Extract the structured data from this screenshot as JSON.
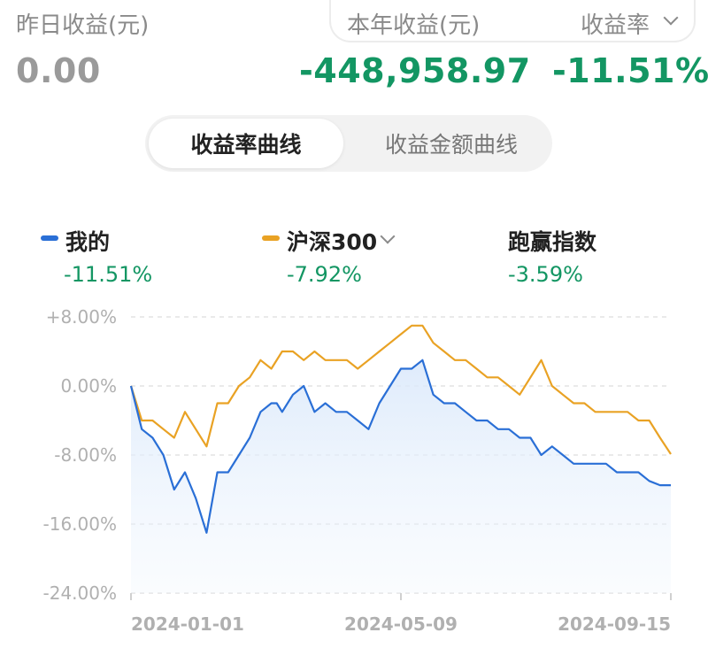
{
  "summary": {
    "yesterday_label": "昨日收益(元)",
    "yesterday_value": "0.00",
    "year_label": "本年收益(元)",
    "year_value": "-448,958.97",
    "rate_label": "收益率",
    "rate_value": "-11.51%"
  },
  "tabs": {
    "rate_curve": "收益率曲线",
    "amount_curve": "收益金额曲线"
  },
  "legend": {
    "mine": {
      "name": "我的",
      "value": "-11.51%",
      "color": "#2a6fd6"
    },
    "benchmark": {
      "name": "沪深300",
      "value": "-7.92%",
      "color": "#e9a224"
    },
    "outperform": {
      "name": "跑赢指数",
      "value": "-3.59%"
    }
  },
  "colors": {
    "positive_text": "#139663",
    "mine": "#2a6fd6",
    "benchmark": "#e9a224"
  },
  "chart_data": {
    "type": "line",
    "y_ticks": [
      "+8.00%",
      "0.00%",
      "-8.00%",
      "-16.00%",
      "-24.00%"
    ],
    "ylim": [
      -24,
      8
    ],
    "x_ticks": [
      "2024-01-01",
      "2024-05-09",
      "2024-09-15"
    ],
    "xlim": [
      0,
      100
    ],
    "grid": true,
    "series": [
      {
        "name": "我的",
        "x": [
          0,
          2,
          4,
          6,
          8,
          10,
          12,
          14,
          16,
          18,
          20,
          22,
          24,
          26,
          27,
          28,
          30,
          32,
          34,
          36,
          38,
          40,
          42,
          44,
          46,
          48,
          50,
          52,
          54,
          56,
          58,
          60,
          62,
          64,
          66,
          68,
          70,
          72,
          74,
          76,
          78,
          80,
          82,
          84,
          86,
          88,
          90,
          92,
          94,
          96,
          98,
          100
        ],
        "y": [
          0,
          -5,
          -6,
          -8,
          -12,
          -10,
          -13,
          -17,
          -10,
          -10,
          -8,
          -6,
          -3,
          -2,
          -2,
          -3,
          -1,
          0,
          -3,
          -2,
          -3,
          -3,
          -4,
          -5,
          -2,
          0,
          2,
          2,
          3,
          -1,
          -2,
          -2,
          -3,
          -4,
          -4,
          -5,
          -5,
          -6,
          -6,
          -8,
          -7,
          -8,
          -9,
          -9,
          -9,
          -9,
          -10,
          -10,
          -10,
          -11,
          -11.5,
          -11.5
        ]
      },
      {
        "name": "沪深300",
        "x": [
          0,
          2,
          4,
          6,
          8,
          10,
          12,
          14,
          16,
          18,
          20,
          22,
          24,
          26,
          28,
          30,
          32,
          34,
          36,
          38,
          40,
          42,
          44,
          46,
          48,
          50,
          52,
          54,
          56,
          58,
          60,
          62,
          64,
          66,
          68,
          70,
          72,
          74,
          76,
          78,
          80,
          82,
          84,
          86,
          88,
          90,
          92,
          94,
          96,
          98,
          100
        ],
        "y": [
          0,
          -4,
          -4,
          -5,
          -6,
          -3,
          -5,
          -7,
          -2,
          -2,
          0,
          1,
          3,
          2,
          4,
          4,
          3,
          4,
          3,
          3,
          3,
          2,
          3,
          4,
          5,
          6,
          7,
          7,
          5,
          4,
          3,
          3,
          2,
          1,
          1,
          0,
          -1,
          1,
          3,
          0,
          -1,
          -2,
          -2,
          -3,
          -3,
          -3,
          -3,
          -4,
          -4,
          -6,
          -7.9
        ]
      }
    ]
  }
}
